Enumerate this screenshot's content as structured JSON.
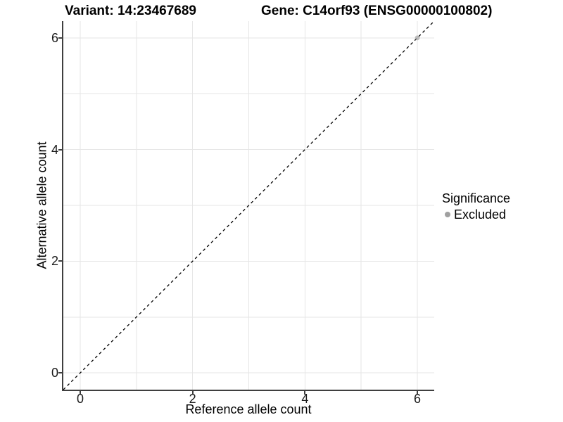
{
  "chart_data": {
    "type": "scatter",
    "title_left": "Variant: 14:23467689",
    "title_right": "Gene: C14orf93 (ENSG00000100802)",
    "xlabel": "Reference allele count",
    "ylabel": "Alternative allele count",
    "xlim": [
      -0.3,
      6.3
    ],
    "ylim": [
      -0.3,
      6.3
    ],
    "x_ticks": [
      0,
      2,
      4,
      6
    ],
    "y_ticks": [
      0,
      2,
      4,
      6
    ],
    "grid_lines_x": [
      0,
      1,
      2,
      3,
      4,
      5,
      6
    ],
    "grid_lines_y": [
      0,
      1,
      2,
      3,
      4,
      5,
      6
    ],
    "grid_on": true,
    "identity_line": {
      "style": "dashed",
      "from": [
        -0.3,
        -0.3
      ],
      "to": [
        6.3,
        6.3
      ],
      "color": "#000000"
    },
    "points": [
      {
        "x": 6,
        "y": 6,
        "significance": "Excluded"
      }
    ],
    "legend": {
      "position": "right",
      "title": "Significance",
      "entries": [
        {
          "label": "Excluded",
          "color": "#a0a0a0"
        }
      ]
    }
  },
  "colors": {
    "background": "#ffffff",
    "grid": "#e6e6e6",
    "axis_line": "#3f3f3f",
    "tick_text": "#1a1a1a",
    "title_text": "#000000",
    "excluded_point": "#a0a0a0"
  }
}
